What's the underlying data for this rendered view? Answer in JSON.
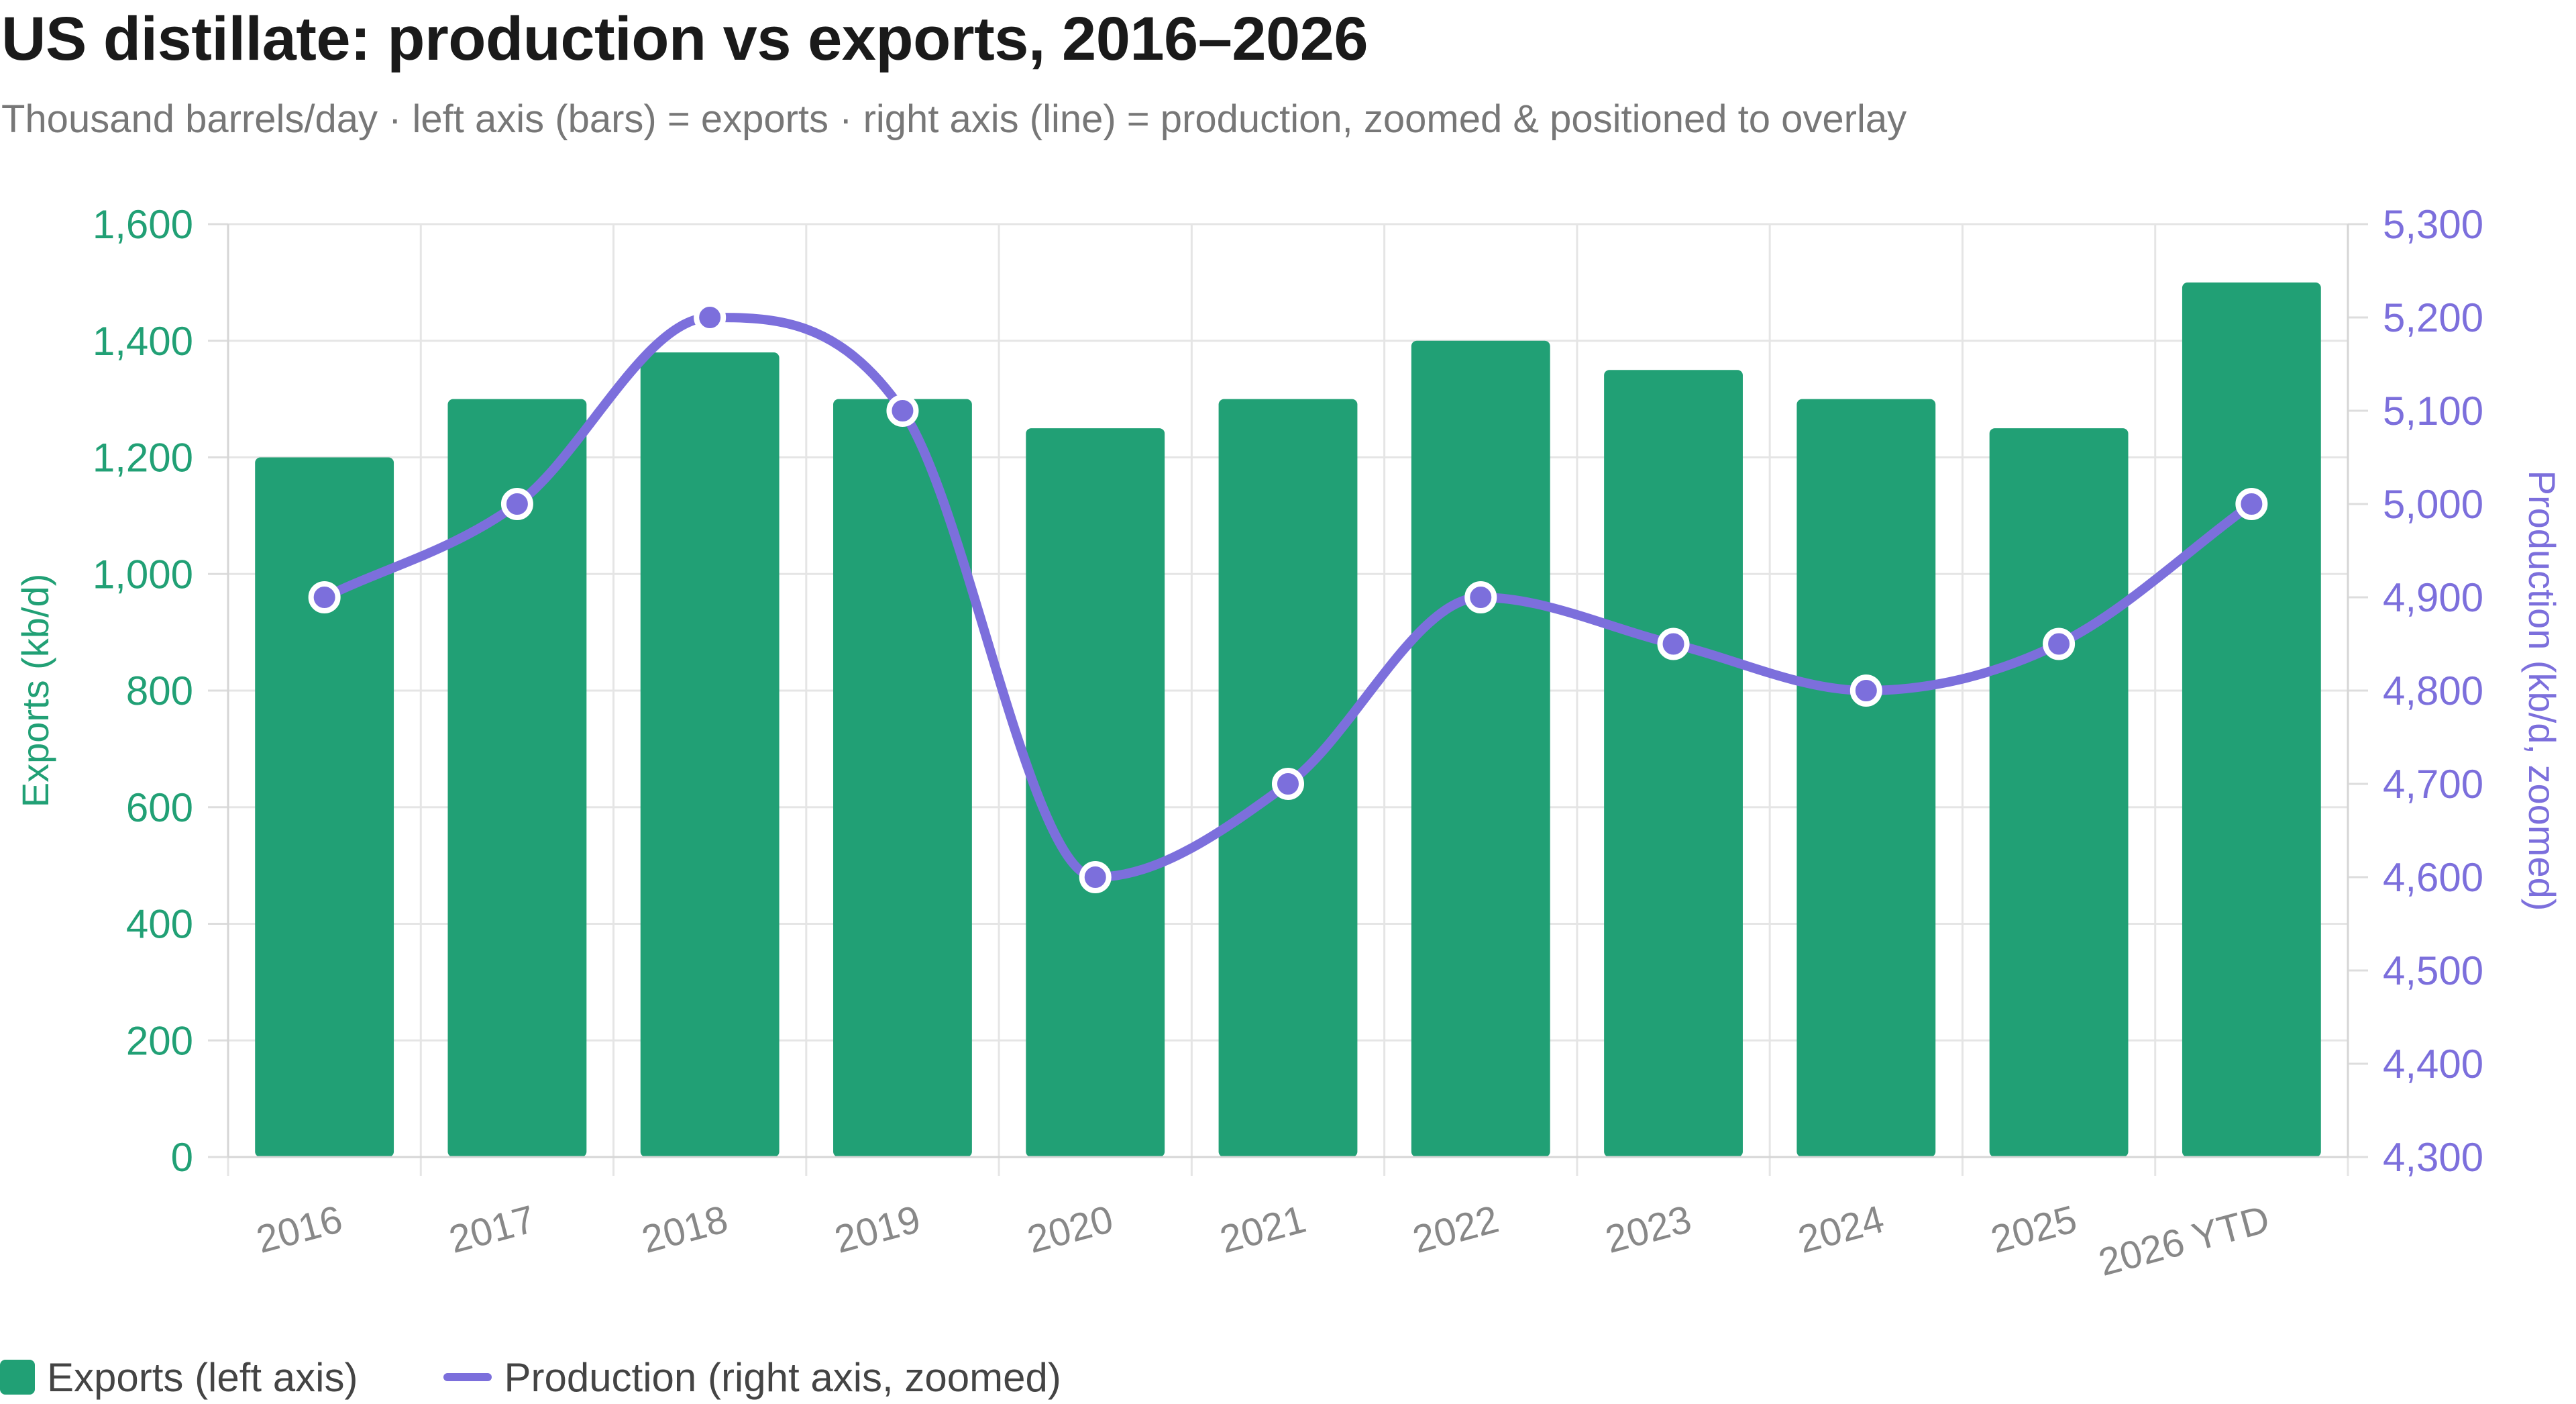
{
  "title": "US distillate: production vs exports, 2016–2026",
  "subtitle": "Thousand barrels/day · left axis (bars) = exports · right axis (line) = production, zoomed & positioned to overlay",
  "colors": {
    "exports": "#21a075",
    "production": "#7c6fdc",
    "grid": "#e5e5e5",
    "tick_text": "#888888"
  },
  "legend": {
    "exports_label": "Exports (left axis)",
    "production_label": "Production (right axis, zoomed)"
  },
  "chart_data": {
    "type": "bar",
    "categories": [
      "2016",
      "2017",
      "2018",
      "2019",
      "2020",
      "2021",
      "2022",
      "2023",
      "2024",
      "2025",
      "2026 YTD"
    ],
    "series": [
      {
        "name": "Exports (left axis)",
        "type": "bar",
        "axis": "left",
        "values": [
          1200,
          1300,
          1380,
          1300,
          1250,
          1300,
          1400,
          1350,
          1300,
          1250,
          1500
        ]
      },
      {
        "name": "Production (right axis, zoomed)",
        "type": "line",
        "axis": "right",
        "values": [
          4900,
          5000,
          5200,
          5100,
          4600,
          4700,
          4900,
          4850,
          4800,
          4850,
          5000
        ]
      }
    ],
    "left_axis": {
      "label": "Exports (kb/d)",
      "min": 0,
      "max": 1600,
      "ticks": [
        "0",
        "200",
        "400",
        "600",
        "800",
        "1,000",
        "1,200",
        "1,400",
        "1,600"
      ]
    },
    "right_axis": {
      "label": "Production (kb/d, zoomed)",
      "min": 4300,
      "max": 5300,
      "ticks": [
        "4,300",
        "4,400",
        "4,500",
        "4,600",
        "4,700",
        "4,800",
        "4,900",
        "5,000",
        "5,100",
        "5,200",
        "5,300"
      ]
    },
    "grid": true,
    "legend_position": "bottom-left"
  }
}
